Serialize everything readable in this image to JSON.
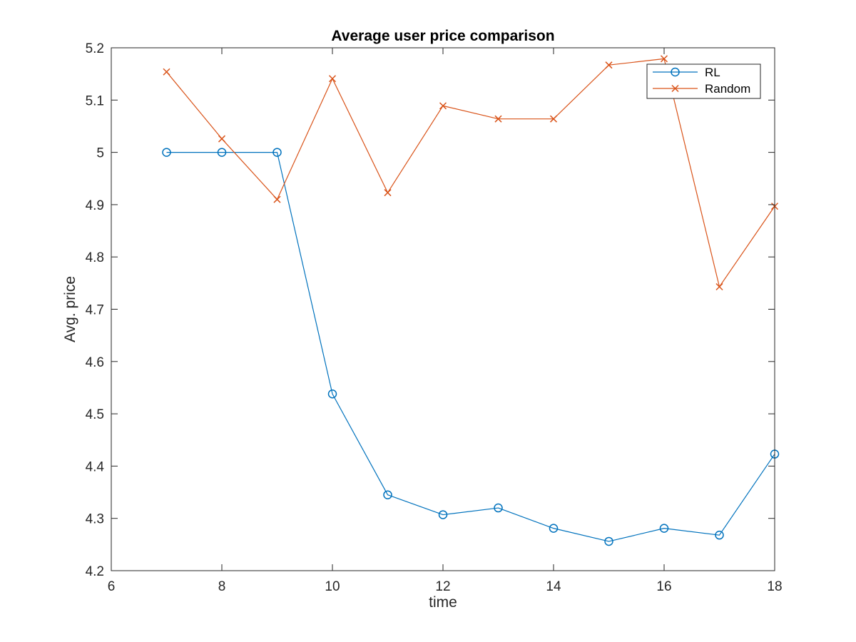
{
  "chart_data": {
    "type": "line",
    "title": "Average user price comparison",
    "xlabel": "time",
    "ylabel": "Avg. price",
    "xlim": [
      6,
      18
    ],
    "ylim": [
      4.2,
      5.2
    ],
    "xticks": [
      6,
      8,
      10,
      12,
      14,
      16,
      18
    ],
    "xtick_labels": [
      "6",
      "8",
      "10",
      "12",
      "14",
      "16",
      "18"
    ],
    "yticks": [
      4.2,
      4.3,
      4.4,
      4.5,
      4.6,
      4.7,
      4.8,
      4.9,
      5.0,
      5.1,
      5.2
    ],
    "ytick_labels": [
      "4.2",
      "4.3",
      "4.4",
      "4.5",
      "4.6",
      "4.7",
      "4.8",
      "4.9",
      "5",
      "5.1",
      "5.2"
    ],
    "grid": false,
    "legend_position": "top-right",
    "x": [
      7,
      8,
      9,
      10,
      11,
      12,
      13,
      14,
      15,
      16,
      17,
      18
    ],
    "series": [
      {
        "name": "RL",
        "color": "#0072bd",
        "marker": "circle",
        "values": [
          5.0,
          5.0,
          5.0,
          4.538,
          4.345,
          4.307,
          4.32,
          4.281,
          4.256,
          4.281,
          4.268,
          4.423
        ]
      },
      {
        "name": "Random",
        "color": "#d95319",
        "marker": "x",
        "values": [
          5.154,
          5.026,
          4.91,
          5.141,
          4.923,
          5.089,
          5.064,
          5.064,
          5.167,
          5.179,
          4.743,
          4.897
        ]
      }
    ]
  }
}
